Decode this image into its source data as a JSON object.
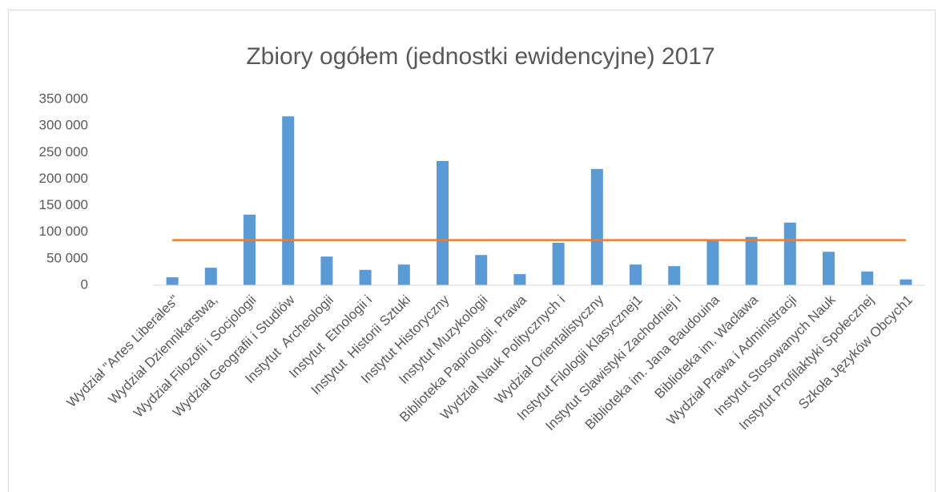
{
  "chart_data": {
    "type": "bar",
    "title": "Zbiory ogółem (jednostki ewidencyjne) 2017",
    "categories": [
      "Wydział \"Artes Liberales\"",
      "Wydział Dziennikarstwa,",
      "Wydział Filozofii i Socjologii",
      "Wydział Geografii i Studiów",
      "Instytut  Archeologii",
      "Instytut  Etnologii i",
      "Instytut  Historii Sztuki",
      "Instytut Historyczny",
      "Instytut Muzykologii",
      "Biblioteka Papirologii, Prawa",
      "Wydział Nauk Politycznych i",
      "Wydział Orientalistyczny",
      "Instytut Filologii Klasycznej1",
      "Instytut Slawistyki Zachodniej i",
      "Biblioteka im. Jana Baudouina",
      "Biblioteka im. Wacława",
      "Wydział Prawa i Administracji",
      "Instytut Stosowanych Nauk",
      "Instytut Profilaktyki Społecznej",
      "Szkoła Języków Obcych1"
    ],
    "values": [
      15000,
      33000,
      133000,
      318000,
      54000,
      29000,
      39000,
      234000,
      57000,
      21000,
      80000,
      219000,
      39000,
      36000,
      86000,
      91000,
      118000,
      63000,
      26000,
      11000
    ],
    "color": "#5b9bd5",
    "reference_line": {
      "value": 85100,
      "color": "#ed7d31"
    },
    "ylim": [
      0,
      350000
    ],
    "yticks": [
      {
        "value": 0,
        "label": "0"
      },
      {
        "value": 50000,
        "label": "50 000"
      },
      {
        "value": 100000,
        "label": "100 000"
      },
      {
        "value": 150000,
        "label": "150 000"
      },
      {
        "value": 200000,
        "label": "200 000"
      },
      {
        "value": 250000,
        "label": "250 000"
      },
      {
        "value": 300000,
        "label": "300 000"
      },
      {
        "value": 350000,
        "label": "350 000"
      }
    ],
    "grid": false
  }
}
